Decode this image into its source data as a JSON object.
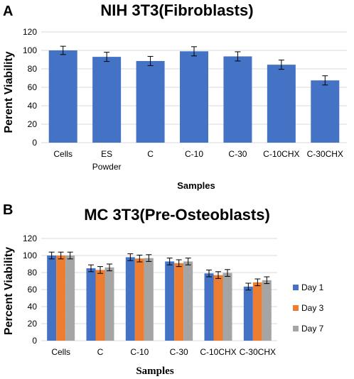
{
  "chart_data": [
    {
      "panel": "A",
      "type": "bar",
      "title": "NIH 3T3(Fibroblasts)",
      "xlabel": "Samples",
      "ylabel": "Perent Viability",
      "ylim": [
        0,
        120
      ],
      "yticks": [
        0,
        20,
        40,
        60,
        80,
        100,
        120
      ],
      "grid": true,
      "categories": [
        "Cells",
        "ES Powder",
        "C",
        "C-10",
        "C-30",
        "C-10CHX",
        "C-30CHX"
      ],
      "category_lines": [
        [
          "Cells"
        ],
        [
          "ES",
          "Powder"
        ],
        [
          "C"
        ],
        [
          "C-10"
        ],
        [
          "C-30"
        ],
        [
          "C-10CHX"
        ],
        [
          "C-30CHX"
        ]
      ],
      "values": [
        100,
        93,
        88.5,
        99,
        93.5,
        84.5,
        67.5
      ],
      "errors": [
        4.5,
        5,
        5,
        5,
        5,
        5,
        5
      ],
      "color": "#4472c4"
    },
    {
      "panel": "B",
      "type": "bar",
      "title": "MC 3T3(Pre-Osteoblasts)",
      "xlabel": "Samples",
      "ylabel": "Percent Viability",
      "ylim": [
        0,
        120
      ],
      "yticks": [
        0,
        20,
        40,
        60,
        80,
        100,
        120
      ],
      "grid": true,
      "legend_position": "right",
      "categories": [
        "Cells",
        "C",
        "C-10",
        "C-30",
        "C-10CHX",
        "C-30CHX"
      ],
      "series": [
        {
          "name": "Day 1",
          "color": "#4472c4",
          "values": [
            100,
            85,
            98,
            93,
            79,
            63.5
          ],
          "errors": [
            4,
            4,
            4,
            4,
            4,
            4
          ]
        },
        {
          "name": "Day 3",
          "color": "#ed7d31",
          "values": [
            100,
            83,
            96.5,
            91,
            77,
            68.5
          ],
          "errors": [
            4,
            4,
            4,
            4,
            4,
            4
          ]
        },
        {
          "name": "Day 7",
          "color": "#a5a5a5",
          "values": [
            100,
            86,
            97,
            93,
            79.5,
            71
          ],
          "errors": [
            4,
            4,
            4,
            4,
            4,
            4
          ]
        }
      ]
    }
  ]
}
